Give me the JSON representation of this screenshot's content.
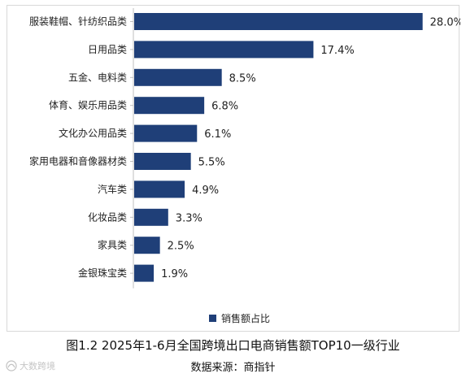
{
  "chart_data": {
    "type": "bar",
    "orientation": "horizontal",
    "title": "",
    "xlabel": "",
    "ylabel": "",
    "xlim": [
      0,
      30
    ],
    "grid": false,
    "legend_position": "bottom",
    "categories": [
      "服装鞋帽、针纺织品类",
      "日用品类",
      "五金、电料类",
      "体育、娱乐用品类",
      "文化办公用品类",
      "家用电器和音像器材类",
      "汽车类",
      "化妆品类",
      "家具类",
      "金银珠宝类"
    ],
    "series": [
      {
        "name": "销售额占比",
        "values": [
          28.0,
          17.4,
          8.5,
          6.8,
          6.1,
          5.5,
          4.9,
          3.3,
          2.5,
          1.9
        ],
        "labels": [
          "28.0%",
          "17.4%",
          "8.5%",
          "6.8%",
          "6.1%",
          "5.5%",
          "4.9%",
          "3.3%",
          "2.5%",
          "1.9%"
        ],
        "color": "#1f3f78"
      }
    ]
  },
  "footer": {
    "caption": "图1.2   2025年1-6月全国跨境出口电商销售额TOP10一级行业",
    "source": "数据来源：商指针"
  },
  "watermark": {
    "text": "大数跨境"
  }
}
